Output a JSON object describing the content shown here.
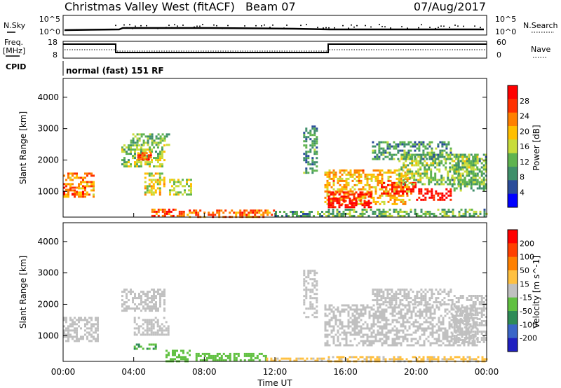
{
  "header": {
    "station": "Christmas Valley West (fitACF)",
    "beam": "Beam 07",
    "date": "07/Aug/2017"
  },
  "indicators": {
    "nsky_label": "N.Sky",
    "nsky_ticks": [
      "10^5",
      "10^0"
    ],
    "nsearch_label": "N.Search",
    "nsearch_ticks": [
      "10^5",
      "10^0"
    ],
    "freq_label_1": "Freq.",
    "freq_label_2": "[MHz]",
    "freq_ticks": [
      "18",
      "8"
    ],
    "nave_label": "Nave",
    "nave_ticks": [
      "60",
      "0"
    ],
    "cpid_label": "CPID",
    "cpid_value": "normal (fast) 151 RF"
  },
  "colors": {
    "power_scale": [
      "#0000ff",
      "#2a4c9a",
      "#3f8f6a",
      "#5fb34f",
      "#c8dc3c",
      "#ffbf00",
      "#ff8000",
      "#ff3000",
      "#ff0000"
    ],
    "velocity_scale": [
      "#2020c0",
      "#3a66c8",
      "#2e8b57",
      "#60c040",
      "#c0c0c0",
      "#ffc040",
      "#ff8000",
      "#ff4000",
      "#ff0000"
    ],
    "ground_scatter": "#c0c0c0"
  },
  "chart_data": [
    {
      "type": "heatmap",
      "title": "",
      "xlabel": "Time UT",
      "ylabel": "Slant Range [km]",
      "quantity": "Power",
      "colorbar_label": "Power [dB]",
      "colorbar_ticks": [
        "28",
        "24",
        "20",
        "16",
        "12",
        "8",
        "4"
      ],
      "clim": [
        0,
        32
      ],
      "xlim_hours": [
        0,
        24
      ],
      "ylim_km": [
        180,
        4600
      ],
      "x_ticks": [
        "00:00",
        "04:00",
        "08:00",
        "12:00",
        "16:00",
        "20:00",
        "00:00"
      ],
      "y_ticks": [
        1000,
        2000,
        3000,
        4000
      ],
      "echo_regions": [
        {
          "t0": 0.0,
          "t1": 1.7,
          "r0": 800,
          "r1": 1600,
          "value": 22
        },
        {
          "t0": 0.0,
          "t1": 1.3,
          "r0": 900,
          "r1": 1150,
          "value": 28
        },
        {
          "t0": 3.3,
          "t1": 5.8,
          "r0": 1800,
          "r1": 2500,
          "value": 14
        },
        {
          "t0": 4.2,
          "t1": 5.0,
          "r0": 2000,
          "r1": 2250,
          "value": 26
        },
        {
          "t0": 4.6,
          "t1": 5.7,
          "r0": 900,
          "r1": 1600,
          "value": 18
        },
        {
          "t0": 6.0,
          "t1": 7.2,
          "r0": 900,
          "r1": 1400,
          "value": 16
        },
        {
          "t0": 3.8,
          "t1": 6.0,
          "r0": 2500,
          "r1": 2850,
          "value": 12
        },
        {
          "t0": 5.0,
          "t1": 6.8,
          "r0": 200,
          "r1": 450,
          "value": 26
        },
        {
          "t0": 7.0,
          "t1": 12.0,
          "r0": 200,
          "r1": 420,
          "value": 24
        },
        {
          "t0": 12.0,
          "t1": 15.0,
          "r0": 200,
          "r1": 380,
          "value": 10
        },
        {
          "t0": 13.6,
          "t1": 14.4,
          "r0": 1600,
          "r1": 3100,
          "value": 10
        },
        {
          "t0": 14.8,
          "t1": 19.6,
          "r0": 600,
          "r1": 1700,
          "value": 20
        },
        {
          "t0": 15.0,
          "t1": 17.5,
          "r0": 500,
          "r1": 1000,
          "value": 30
        },
        {
          "t0": 18.0,
          "t1": 20.0,
          "r0": 900,
          "r1": 1300,
          "value": 28
        },
        {
          "t0": 19.0,
          "t1": 23.5,
          "r0": 1200,
          "r1": 2200,
          "value": 14
        },
        {
          "t0": 17.5,
          "t1": 22.0,
          "r0": 2000,
          "r1": 2600,
          "value": 10
        },
        {
          "t0": 20.0,
          "t1": 22.0,
          "r0": 700,
          "r1": 1100,
          "value": 30
        },
        {
          "t0": 22.0,
          "t1": 24.0,
          "r0": 1000,
          "r1": 2200,
          "value": 12
        },
        {
          "t0": 15.0,
          "t1": 24.0,
          "r0": 200,
          "r1": 450,
          "value": 12
        }
      ]
    },
    {
      "type": "heatmap",
      "title": "",
      "xlabel": "Time UT",
      "ylabel": "Slant Range [km]",
      "quantity": "Velocity",
      "colorbar_label": "Velocity [m s^-1]",
      "colorbar_ticks": [
        "200",
        "100",
        "50",
        "15",
        "-15",
        "-50",
        "-100",
        "-200"
      ],
      "clim": [
        -250,
        250
      ],
      "xlim_hours": [
        0,
        24
      ],
      "ylim_km": [
        180,
        4600
      ],
      "x_ticks": [
        "00:00",
        "04:00",
        "08:00",
        "12:00",
        "16:00",
        "20:00",
        "00:00"
      ],
      "y_ticks": [
        1000,
        2000,
        3000,
        4000
      ],
      "echo_regions": [
        {
          "t0": 0.0,
          "t1": 2.0,
          "r0": 800,
          "r1": 1600,
          "value": 0
        },
        {
          "t0": 3.3,
          "t1": 5.8,
          "r0": 1800,
          "r1": 2500,
          "value": 0
        },
        {
          "t0": 4.0,
          "t1": 6.0,
          "r0": 1000,
          "r1": 1600,
          "value": 0
        },
        {
          "t0": 4.0,
          "t1": 5.2,
          "r0": 550,
          "r1": 750,
          "value": -80
        },
        {
          "t0": 5.8,
          "t1": 7.2,
          "r0": 200,
          "r1": 550,
          "value": -60
        },
        {
          "t0": 7.5,
          "t1": 11.5,
          "r0": 200,
          "r1": 450,
          "value": -50
        },
        {
          "t0": 11.5,
          "t1": 15.0,
          "r0": 200,
          "r1": 300,
          "value": 40
        },
        {
          "t0": 13.6,
          "t1": 14.4,
          "r0": 1600,
          "r1": 3100,
          "value": 0
        },
        {
          "t0": 14.8,
          "t1": 23.5,
          "r0": 700,
          "r1": 2000,
          "value": 0
        },
        {
          "t0": 17.5,
          "t1": 22.0,
          "r0": 2000,
          "r1": 2500,
          "value": 0
        },
        {
          "t0": 22.0,
          "t1": 24.0,
          "r0": 800,
          "r1": 2300,
          "value": 0
        },
        {
          "t0": 15.0,
          "t1": 24.0,
          "r0": 200,
          "r1": 350,
          "value": 40
        }
      ]
    }
  ]
}
